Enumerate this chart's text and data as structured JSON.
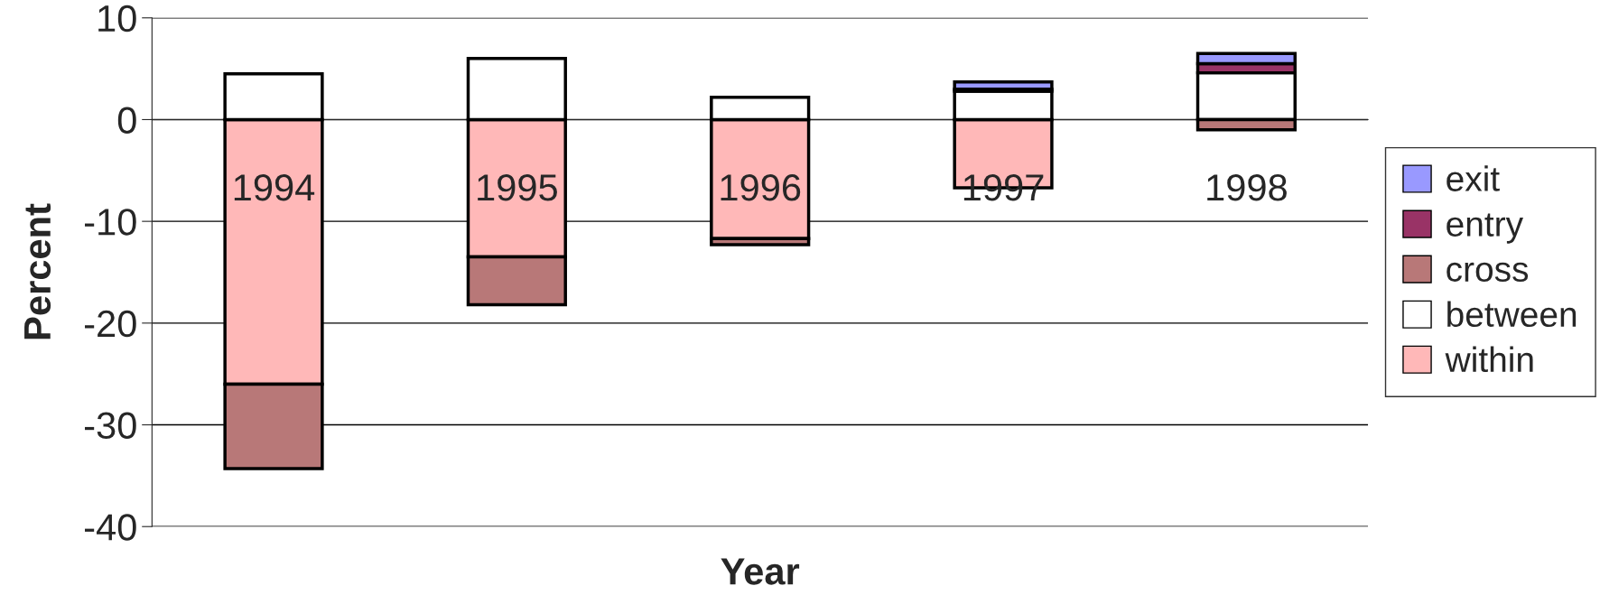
{
  "chart_data": {
    "type": "bar",
    "stacked": true,
    "xlabel": "Year",
    "ylabel": "Percent",
    "categories": [
      "1994",
      "1995",
      "1996",
      "1997",
      "1998"
    ],
    "series": [
      {
        "name": "within",
        "color": "#ffb8b8",
        "values": [
          -26.0,
          -13.5,
          -11.7,
          -6.7,
          0
        ]
      },
      {
        "name": "between",
        "color": "#ffffff",
        "values": [
          4.5,
          6.0,
          2.2,
          2.8,
          4.6
        ]
      },
      {
        "name": "cross",
        "color": "#b87878",
        "values": [
          -8.3,
          -4.7,
          -0.6,
          0,
          -1.0
        ]
      },
      {
        "name": "entry",
        "color": "#993366",
        "values": [
          0,
          0,
          0,
          0.2,
          0.9
        ]
      },
      {
        "name": "exit",
        "color": "#9999ff",
        "values": [
          0,
          0,
          0,
          0.7,
          1.0
        ]
      }
    ],
    "ylim": [
      -40,
      10
    ],
    "yticks": [
      -40,
      -30,
      -20,
      -10,
      0,
      10
    ],
    "grid": "y",
    "legend": "right"
  }
}
